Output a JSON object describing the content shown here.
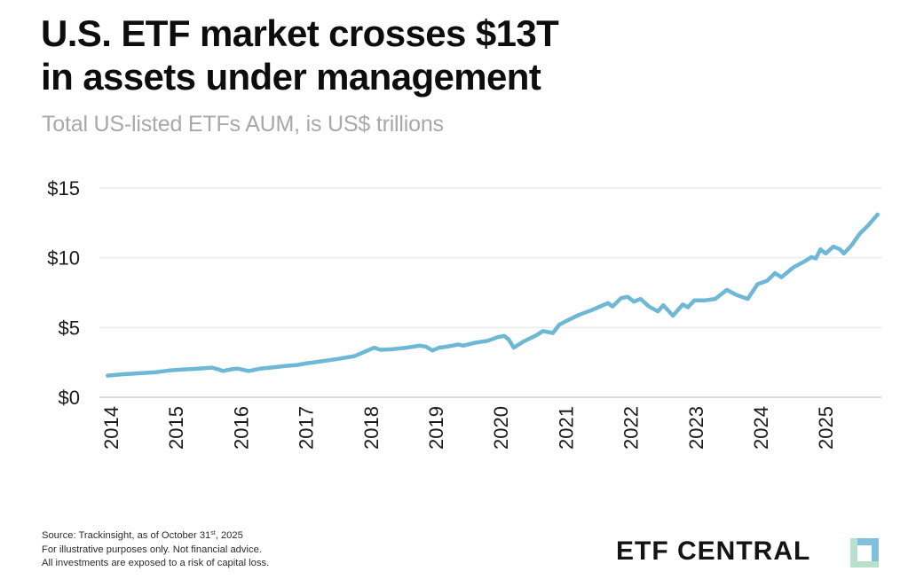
{
  "header": {
    "title_line1": "U.S. ETF market crosses $13T",
    "title_line2": "in assets under management",
    "subtitle": "Total US-listed ETFs AUM, is US$ trillions"
  },
  "footer": {
    "source_prefix": "Source: Trackinsight, as of October 31",
    "source_sup": "st",
    "source_suffix": ", 2025",
    "disclaimer1": "For illustrative purposes only. Not financial advice.",
    "disclaimer2": "All investments are exposed to a risk of capital loss.",
    "brand": "ETF CENTRAL",
    "brand_icon": "etf-central-logo-icon"
  },
  "colors": {
    "line": "#6eb8d6",
    "grid": "#ebebeb",
    "baseline": "#dcdcdc",
    "title": "#0d0d0d",
    "subtitle": "#a8a8a8"
  },
  "chart_data": {
    "type": "line",
    "title": "U.S. ETF market crosses $13T in assets under management",
    "subtitle": "Total US-listed ETFs AUM, is US$ trillions",
    "xlabel": "",
    "ylabel": "",
    "xlim": [
      2014,
      2025.85
    ],
    "ylim": [
      0,
      15
    ],
    "grid": "horizontal",
    "legend": "none",
    "y_ticks": [
      0,
      5,
      10,
      15
    ],
    "y_tick_labels": [
      "$0",
      "$5",
      "$10",
      "$15"
    ],
    "x_ticks": [
      2014,
      2015,
      2016,
      2017,
      2018,
      2019,
      2020,
      2021,
      2022,
      2023,
      2024,
      2025
    ],
    "x_tick_labels": [
      "2014",
      "2015",
      "2016",
      "2017",
      "2018",
      "2019",
      "2020",
      "2021",
      "2022",
      "2023",
      "2024",
      "2025"
    ],
    "series": [
      {
        "name": "Total US-listed ETFs AUM (US$ trillions)",
        "points": [
          [
            2013.95,
            1.55
          ],
          [
            2014.2,
            1.65
          ],
          [
            2014.45,
            1.72
          ],
          [
            2014.7,
            1.8
          ],
          [
            2014.9,
            1.92
          ],
          [
            2015.1,
            1.98
          ],
          [
            2015.35,
            2.05
          ],
          [
            2015.55,
            2.12
          ],
          [
            2015.65,
            2.0
          ],
          [
            2015.72,
            1.88
          ],
          [
            2015.85,
            2.0
          ],
          [
            2015.95,
            2.05
          ],
          [
            2016.05,
            1.95
          ],
          [
            2016.12,
            1.88
          ],
          [
            2016.3,
            2.05
          ],
          [
            2016.5,
            2.15
          ],
          [
            2016.7,
            2.25
          ],
          [
            2016.85,
            2.3
          ],
          [
            2017.0,
            2.42
          ],
          [
            2017.25,
            2.58
          ],
          [
            2017.5,
            2.75
          ],
          [
            2017.75,
            2.95
          ],
          [
            2017.95,
            3.35
          ],
          [
            2018.05,
            3.55
          ],
          [
            2018.15,
            3.4
          ],
          [
            2018.35,
            3.45
          ],
          [
            2018.55,
            3.55
          ],
          [
            2018.75,
            3.7
          ],
          [
            2018.85,
            3.62
          ],
          [
            2018.95,
            3.35
          ],
          [
            2019.05,
            3.55
          ],
          [
            2019.2,
            3.65
          ],
          [
            2019.35,
            3.78
          ],
          [
            2019.42,
            3.7
          ],
          [
            2019.6,
            3.9
          ],
          [
            2019.8,
            4.05
          ],
          [
            2019.95,
            4.3
          ],
          [
            2020.05,
            4.4
          ],
          [
            2020.12,
            4.15
          ],
          [
            2020.2,
            3.55
          ],
          [
            2020.35,
            4.0
          ],
          [
            2020.55,
            4.45
          ],
          [
            2020.65,
            4.75
          ],
          [
            2020.8,
            4.6
          ],
          [
            2020.9,
            5.2
          ],
          [
            2021.0,
            5.45
          ],
          [
            2021.2,
            5.9
          ],
          [
            2021.4,
            6.25
          ],
          [
            2021.55,
            6.55
          ],
          [
            2021.65,
            6.75
          ],
          [
            2021.72,
            6.5
          ],
          [
            2021.85,
            7.1
          ],
          [
            2021.95,
            7.2
          ],
          [
            2022.05,
            6.85
          ],
          [
            2022.15,
            7.05
          ],
          [
            2022.28,
            6.5
          ],
          [
            2022.42,
            6.15
          ],
          [
            2022.5,
            6.6
          ],
          [
            2022.65,
            5.85
          ],
          [
            2022.8,
            6.65
          ],
          [
            2022.88,
            6.45
          ],
          [
            2022.98,
            6.95
          ],
          [
            2023.15,
            6.95
          ],
          [
            2023.3,
            7.05
          ],
          [
            2023.48,
            7.7
          ],
          [
            2023.62,
            7.35
          ],
          [
            2023.8,
            7.05
          ],
          [
            2023.95,
            8.1
          ],
          [
            2024.1,
            8.35
          ],
          [
            2024.22,
            8.9
          ],
          [
            2024.32,
            8.6
          ],
          [
            2024.5,
            9.3
          ],
          [
            2024.7,
            9.8
          ],
          [
            2024.78,
            10.05
          ],
          [
            2024.85,
            9.95
          ],
          [
            2024.92,
            10.6
          ],
          [
            2025.0,
            10.3
          ],
          [
            2025.12,
            10.8
          ],
          [
            2025.22,
            10.6
          ],
          [
            2025.28,
            10.3
          ],
          [
            2025.4,
            10.9
          ],
          [
            2025.52,
            11.7
          ],
          [
            2025.65,
            12.3
          ],
          [
            2025.8,
            13.1
          ]
        ]
      }
    ]
  }
}
